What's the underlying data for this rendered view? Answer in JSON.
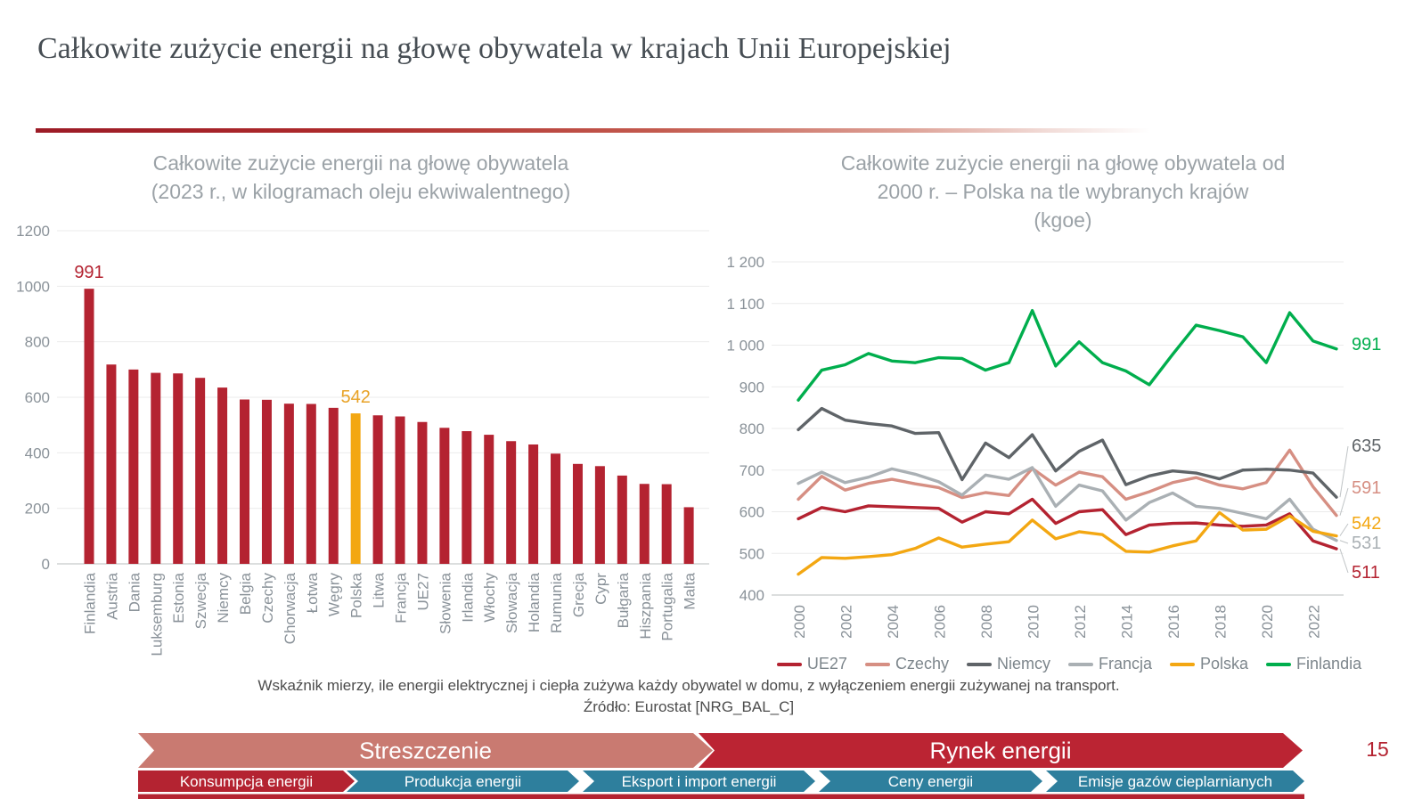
{
  "slide": {
    "title": "Całkowite zużycie energii na głowę obywatela w krajach Unii Europejskiej",
    "page_number": "15"
  },
  "note": "Wskaźnik mierzy, ile energii elektrycznej i ciepła zużywa każdy obywatel w domu, z wyłączeniem energii zużywanej na transport.",
  "source": "Źródło: Eurostat [NRG_BAL_C]",
  "colors": {
    "crimson": "#b42331",
    "gold": "#f3a712",
    "green": "#00ae4d",
    "salmon_line": "#d68f83",
    "dark_gray_line": "#5f6468",
    "light_gray_line": "#aab0b4",
    "axis_text": "#8a9299",
    "chart_title_text": "#9ba2a7",
    "grid": "#ebebeb",
    "axis_line": "#d0d3d4",
    "leader": "#c0c4c6"
  },
  "chart_data": [
    {
      "type": "bar",
      "title_lines": [
        "Całkowite zużycie energii na głowę obywatela",
        "(2023 r., w kilogramach oleju ekwiwalentnego)"
      ],
      "ylim": [
        0,
        1200
      ],
      "y_ticks": [
        0,
        200,
        400,
        600,
        800,
        1000,
        1200
      ],
      "categories": [
        "Finlandia",
        "Austria",
        "Dania",
        "Luksemburg",
        "Estonia",
        "Szwecja",
        "Niemcy",
        "Belgia",
        "Czechy",
        "Chorwacja",
        "Łotwa",
        "Węgry",
        "Polska",
        "Litwa",
        "Francja",
        "UE27",
        "Słowenia",
        "Irlandia",
        "Włochy",
        "Słowacja",
        "Holandia",
        "Rumunia",
        "Grecja",
        "Cypr",
        "Bułgaria",
        "Hiszpania",
        "Portugalia",
        "Malta"
      ],
      "values": [
        991,
        718,
        700,
        688,
        686,
        670,
        635,
        592,
        591,
        577,
        576,
        562,
        542,
        535,
        531,
        511,
        490,
        478,
        465,
        442,
        430,
        397,
        360,
        352,
        318,
        288,
        287,
        204
      ],
      "bar_color": "#b42331",
      "highlight_category": "Polska",
      "highlight_color": "#f3a712",
      "callouts": [
        {
          "category": "Finlandia",
          "value": "991",
          "color": "#b42331"
        },
        {
          "category": "Polska",
          "value": "542",
          "color": "#e8a226"
        }
      ]
    },
    {
      "type": "line",
      "title_lines": [
        "Całkowite zużycie energii na głowę obywatela od",
        "2000 r. – Polska na tle wybranych krajów",
        "(kgoe)"
      ],
      "ylim": [
        400,
        1200
      ],
      "y_tick_values": [
        400,
        500,
        600,
        700,
        800,
        900,
        1000,
        1100,
        1200
      ],
      "y_tick_labels": [
        "400",
        "500",
        "600",
        "700",
        "800",
        "900",
        "1 000",
        "1 100",
        "1 200"
      ],
      "x": [
        2000,
        2001,
        2002,
        2003,
        2004,
        2005,
        2006,
        2007,
        2008,
        2009,
        2010,
        2011,
        2012,
        2013,
        2014,
        2015,
        2016,
        2017,
        2018,
        2019,
        2020,
        2021,
        2022,
        2023
      ],
      "x_tick_labels": [
        "2000",
        "2002",
        "2004",
        "2006",
        "2008",
        "2010",
        "2012",
        "2014",
        "2016",
        "2018",
        "2020",
        "2022"
      ],
      "series": [
        {
          "name": "UE27",
          "color": "#b42331",
          "end_label": "511",
          "values": [
            583,
            610,
            600,
            614,
            612,
            610,
            608,
            575,
            600,
            595,
            630,
            572,
            600,
            605,
            545,
            568,
            572,
            573,
            568,
            565,
            568,
            595,
            530,
            511
          ]
        },
        {
          "name": "Czechy",
          "color": "#d68f83",
          "end_label": "591",
          "values": [
            630,
            685,
            652,
            668,
            678,
            667,
            658,
            634,
            646,
            639,
            704,
            664,
            695,
            684,
            630,
            648,
            670,
            682,
            664,
            655,
            670,
            748,
            660,
            591
          ]
        },
        {
          "name": "Niemcy",
          "color": "#5f6468",
          "end_label": "635",
          "values": [
            797,
            848,
            820,
            812,
            806,
            788,
            790,
            677,
            765,
            730,
            785,
            698,
            745,
            772,
            665,
            686,
            698,
            693,
            679,
            700,
            702,
            700,
            693,
            635
          ]
        },
        {
          "name": "Francja",
          "color": "#aab0b4",
          "end_label": "531",
          "values": [
            668,
            695,
            670,
            683,
            703,
            690,
            672,
            640,
            688,
            678,
            706,
            613,
            664,
            650,
            580,
            622,
            645,
            613,
            608,
            596,
            583,
            630,
            558,
            531
          ]
        },
        {
          "name": "Polska",
          "color": "#f3a712",
          "end_label": "542",
          "values": [
            450,
            490,
            488,
            492,
            497,
            512,
            537,
            515,
            522,
            528,
            580,
            535,
            552,
            545,
            505,
            503,
            518,
            530,
            598,
            556,
            558,
            590,
            553,
            542
          ]
        },
        {
          "name": "Finlandia",
          "color": "#00ae4d",
          "end_label": "991",
          "values": [
            868,
            940,
            953,
            980,
            962,
            958,
            970,
            968,
            940,
            958,
            1083,
            950,
            1008,
            958,
            938,
            905,
            978,
            1048,
            1035,
            1020,
            958,
            1078,
            1010,
            991
          ]
        }
      ],
      "legend_position": "bottom",
      "grid": true
    }
  ],
  "nav": {
    "primary": [
      {
        "label": "Streszczenie",
        "color": "#c97a71"
      },
      {
        "label": "Rynek energii",
        "color": "#bb2433"
      }
    ],
    "secondary": [
      {
        "label": "Konsumpcja energii",
        "color": "#b42331"
      },
      {
        "label": "Produkcja energii",
        "color": "#2e7f9d"
      },
      {
        "label": "Eksport i import energii",
        "color": "#2e7f9d"
      },
      {
        "label": "Ceny energii",
        "color": "#2e7f9d"
      },
      {
        "label": "Emisje gazów cieplarnianych",
        "color": "#2e7f9d"
      }
    ],
    "strip_color": "#b42331"
  }
}
